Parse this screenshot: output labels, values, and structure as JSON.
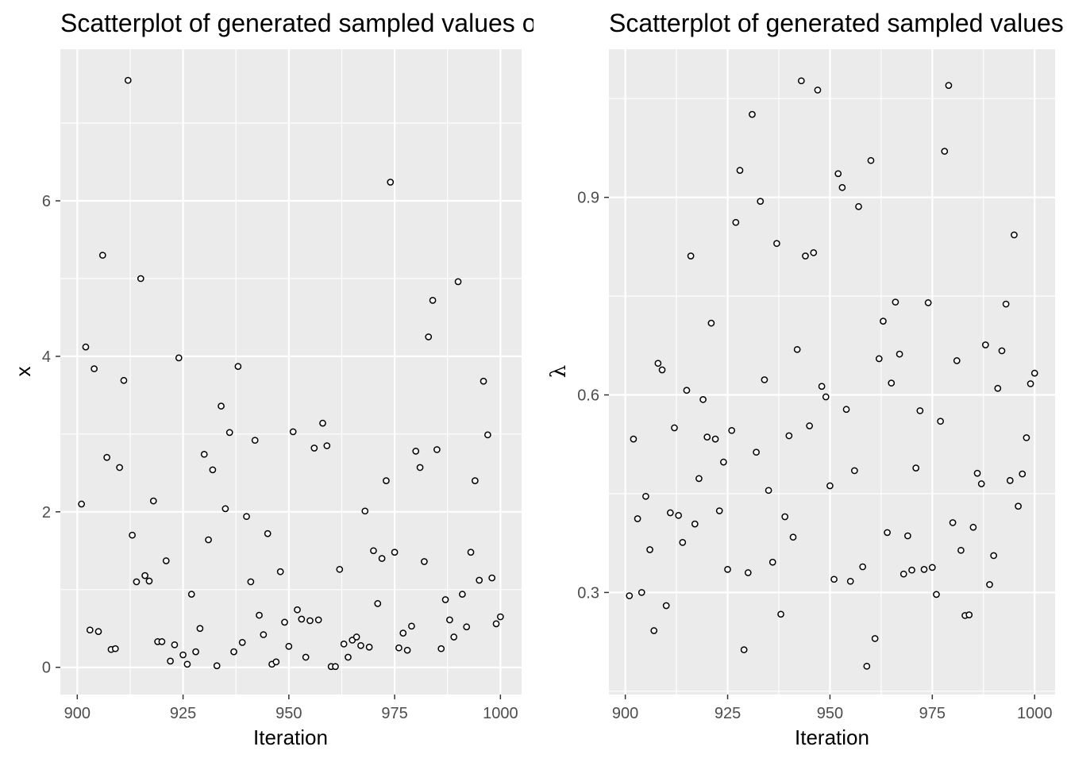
{
  "chart_data": [
    {
      "type": "scatter",
      "title": "Scatterplot of generated sampled values of x",
      "xlabel": "Iteration",
      "ylabel": "x",
      "xlim": [
        896,
        1005
      ],
      "ylim": [
        -0.35,
        7.95
      ],
      "x_ticks": [
        900,
        925,
        950,
        975,
        1000
      ],
      "y_ticks": [
        0,
        2,
        4,
        6
      ],
      "x_tick_labels": [
        "900",
        "925",
        "950",
        "975",
        "1000"
      ],
      "y_tick_labels": [
        "0",
        "2",
        "4",
        "6"
      ],
      "grid": true,
      "panel_background": "#ebebeb",
      "point_style": "open circle, black outline",
      "x": [
        901,
        902,
        903,
        904,
        905,
        906,
        907,
        908,
        909,
        910,
        911,
        912,
        913,
        914,
        915,
        916,
        917,
        918,
        919,
        920,
        921,
        922,
        923,
        924,
        925,
        926,
        927,
        928,
        929,
        930,
        931,
        932,
        933,
        934,
        935,
        936,
        937,
        938,
        939,
        940,
        941,
        942,
        943,
        944,
        945,
        946,
        947,
        948,
        949,
        950,
        951,
        952,
        953,
        954,
        955,
        956,
        957,
        958,
        959,
        960,
        961,
        962,
        963,
        964,
        965,
        966,
        967,
        968,
        969,
        970,
        971,
        972,
        973,
        974,
        975,
        976,
        977,
        978,
        979,
        980,
        981,
        982,
        983,
        984,
        985,
        986,
        987,
        988,
        989,
        990,
        991,
        992,
        993,
        994,
        995,
        996,
        997,
        998,
        999,
        1000
      ],
      "y": [
        2.1,
        4.12,
        0.48,
        3.84,
        0.46,
        5.3,
        2.7,
        0.23,
        0.24,
        2.57,
        3.69,
        7.55,
        1.7,
        1.1,
        5.0,
        1.18,
        1.11,
        2.14,
        0.33,
        0.33,
        1.37,
        0.08,
        0.29,
        3.98,
        0.16,
        0.04,
        0.94,
        0.2,
        0.5,
        2.74,
        1.64,
        2.54,
        0.02,
        3.36,
        2.04,
        3.02,
        0.2,
        3.87,
        0.32,
        1.94,
        1.1,
        2.92,
        0.67,
        0.42,
        1.72,
        0.04,
        0.07,
        1.23,
        0.58,
        0.27,
        3.03,
        0.74,
        0.62,
        0.13,
        0.6,
        2.82,
        0.61,
        3.14,
        2.85,
        0.01,
        0.01,
        1.26,
        0.3,
        0.13,
        0.35,
        0.39,
        0.28,
        2.01,
        0.26,
        1.5,
        0.82,
        1.4,
        2.4,
        6.24,
        1.48,
        0.25,
        0.44,
        0.22,
        0.53,
        2.78,
        2.57,
        1.36,
        4.25,
        4.72,
        2.8,
        0.24,
        0.87,
        0.61,
        0.39,
        4.96,
        0.94,
        0.52,
        1.48,
        2.4,
        1.12,
        3.68,
        2.99,
        1.15,
        0.56,
        0.65
      ]
    },
    {
      "type": "scatter",
      "title": "Scatterplot of generated sampled values of λ",
      "xlabel": "Iteration",
      "ylabel": "λ",
      "xlim": [
        896,
        1005
      ],
      "ylim": [
        0.145,
        1.125
      ],
      "x_ticks": [
        900,
        925,
        950,
        975,
        1000
      ],
      "y_ticks": [
        0.3,
        0.6,
        0.9
      ],
      "x_tick_labels": [
        "900",
        "925",
        "950",
        "975",
        "1000"
      ],
      "y_tick_labels": [
        "0.3",
        "0.6",
        "0.9"
      ],
      "grid": true,
      "panel_background": "#ebebeb",
      "point_style": "open circle, black outline",
      "x": [
        901,
        902,
        903,
        904,
        905,
        906,
        907,
        908,
        909,
        910,
        911,
        912,
        913,
        914,
        915,
        916,
        917,
        918,
        919,
        920,
        921,
        922,
        923,
        924,
        925,
        926,
        927,
        928,
        929,
        930,
        931,
        932,
        933,
        934,
        935,
        936,
        937,
        938,
        939,
        940,
        941,
        942,
        943,
        944,
        945,
        946,
        947,
        948,
        949,
        950,
        951,
        952,
        953,
        954,
        955,
        956,
        957,
        958,
        959,
        960,
        961,
        962,
        963,
        964,
        965,
        966,
        967,
        968,
        969,
        970,
        971,
        972,
        973,
        974,
        975,
        976,
        977,
        978,
        979,
        980,
        981,
        982,
        983,
        984,
        985,
        986,
        987,
        988,
        989,
        990,
        991,
        992,
        993,
        994,
        995,
        996,
        997,
        998,
        999,
        1000
      ],
      "y": [
        0.295,
        0.533,
        0.412,
        0.3,
        0.446,
        0.365,
        0.242,
        0.648,
        0.638,
        0.28,
        0.421,
        0.55,
        0.417,
        0.376,
        0.607,
        0.811,
        0.404,
        0.473,
        0.593,
        0.536,
        0.709,
        0.533,
        0.424,
        0.498,
        0.335,
        0.546,
        0.862,
        0.941,
        0.213,
        0.33,
        1.026,
        0.513,
        0.894,
        0.623,
        0.455,
        0.346,
        0.83,
        0.267,
        0.415,
        0.538,
        0.384,
        0.669,
        1.077,
        0.811,
        0.553,
        0.816,
        1.063,
        0.613,
        0.597,
        0.462,
        0.32,
        0.936,
        0.915,
        0.578,
        0.317,
        0.485,
        0.886,
        0.339,
        0.188,
        0.956,
        0.23,
        0.655,
        0.712,
        0.391,
        0.618,
        0.741,
        0.662,
        0.328,
        0.386,
        0.334,
        0.489,
        0.576,
        0.335,
        0.74,
        0.338,
        0.297,
        0.56,
        0.97,
        1.07,
        0.406,
        0.652,
        0.364,
        0.265,
        0.266,
        0.399,
        0.481,
        0.465,
        0.676,
        0.312,
        0.356,
        0.61,
        0.667,
        0.738,
        0.47,
        0.843,
        0.431,
        0.48,
        0.535,
        0.617,
        0.633
      ]
    }
  ]
}
